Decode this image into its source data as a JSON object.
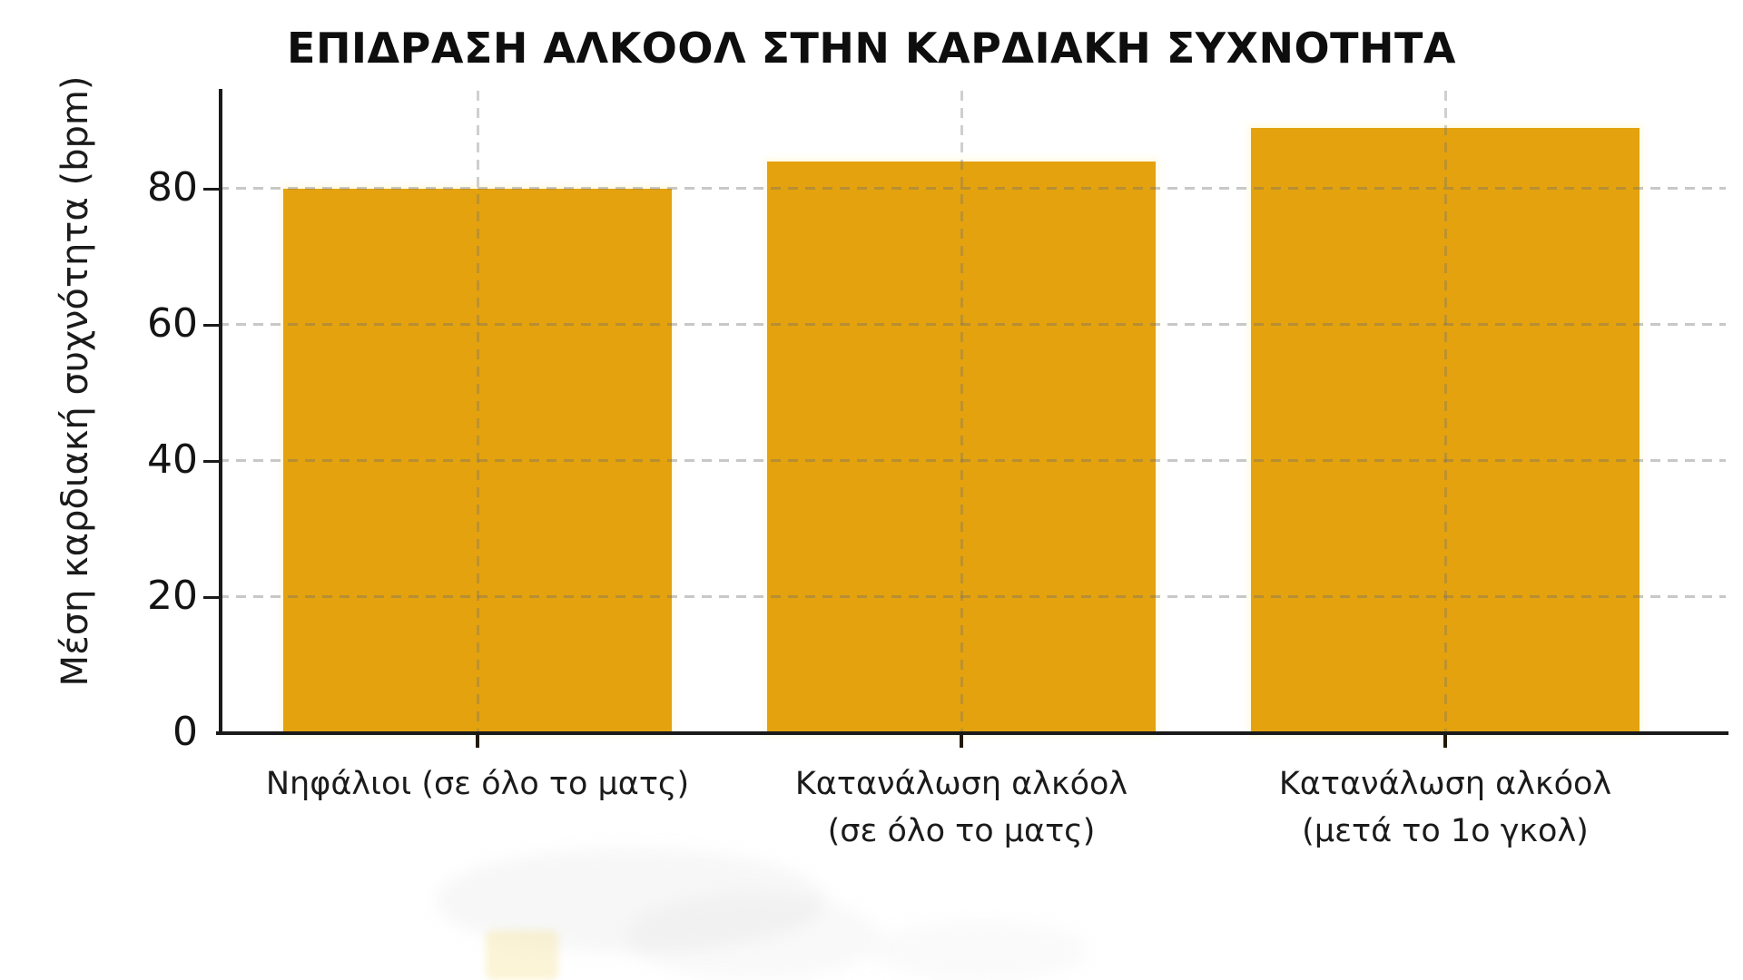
{
  "chart_data": {
    "type": "bar",
    "title": "ΕΠΙΔΡΑΣΗ ΑΛΚΟΟΛ ΣΤΗΝ ΚΑΡΔΙΑΚΗ ΣΥΧΝΟΤΗΤΑ",
    "ylabel": "Μέση καρδιακή συχνότητα (bpm)",
    "xlabel": "",
    "categories": [
      "Νηφάλιοι (σε όλο το ματς)",
      "Κατανάλωση αλκόολ (σε όλο το ματς)",
      "Κατανάλωση αλκόολ (μετά το 1ο γκολ)"
    ],
    "category_lines": [
      [
        "Νηφάλιοι (σε όλο το ματς)"
      ],
      [
        "Κατανάλωση αλκόολ",
        "(σε όλο το ματς)"
      ],
      [
        "Κατανάλωση αλκόολ",
        "(μετά το 1ο γκολ)"
      ]
    ],
    "values": [
      80,
      84,
      89
    ],
    "unit": "bpm",
    "yticks": [
      0,
      20,
      40,
      60,
      80
    ],
    "ylim": [
      0,
      94.4
    ],
    "bar_color": "#E4A20E",
    "grid": true,
    "grid_style": "dashed",
    "grid_color": "#cfcfcf",
    "axis_color": "#1a1a1a",
    "legend_position": "none"
  }
}
